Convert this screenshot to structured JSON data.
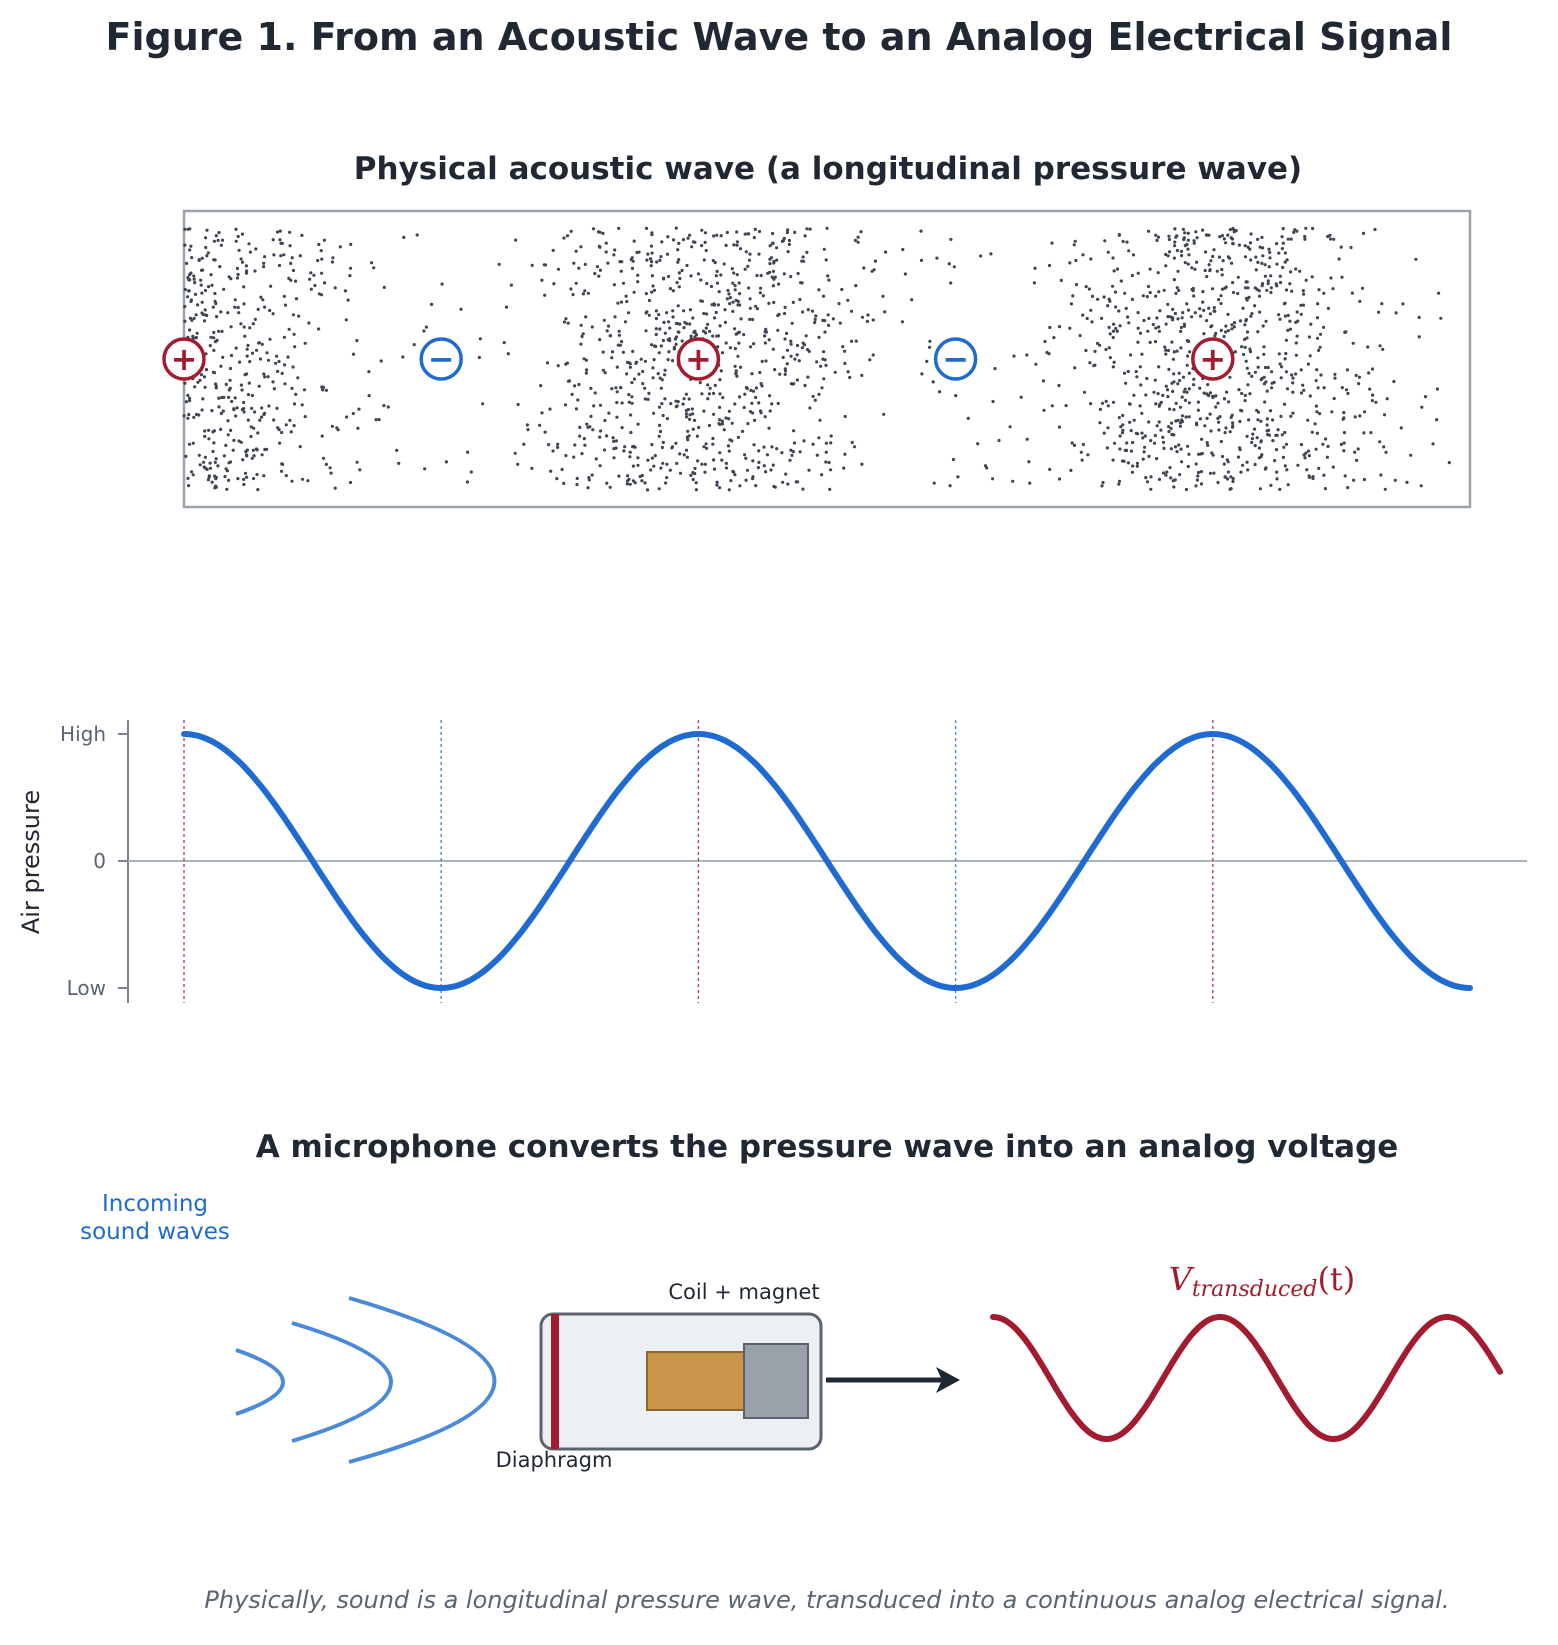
{
  "figure": {
    "title": "Figure 1.  From an Acoustic Wave to an Analog Electrical Signal",
    "caption": "Physically, sound is a longitudinal pressure wave, transduced into a continuous analog electrical signal."
  },
  "acoustic_panel": {
    "title": "Physical acoustic wave (a longitudinal pressure wave)",
    "markers": [
      {
        "symbol": "+",
        "kind": "compression"
      },
      {
        "symbol": "−",
        "kind": "rarefaction"
      },
      {
        "symbol": "+",
        "kind": "compression"
      },
      {
        "symbol": "−",
        "kind": "rarefaction"
      },
      {
        "symbol": "+",
        "kind": "compression"
      }
    ]
  },
  "pressure_panel": {
    "ylabel": "Air pressure",
    "ticks": [
      "High",
      "0",
      "Low"
    ]
  },
  "microphone_panel": {
    "title": "A microphone converts the pressure wave into an analog voltage",
    "incoming_label_line1": "Incoming",
    "incoming_label_line2": "sound waves",
    "coil_label": "Coil + magnet",
    "diaphragm_label": "Diaphragm",
    "voltage_label_main": "V",
    "voltage_label_sub": "transduced",
    "voltage_label_arg": "(t)"
  },
  "colors": {
    "compression": "#a31b2f",
    "rarefaction": "#1f6bd1",
    "pressure_curve": "#1f6bd1",
    "voltage_curve": "#a31b2f",
    "particles": "#3d4652",
    "sound_arcs": "#4a8ad8",
    "coil": "#c8954a",
    "magnet": "#9aa1ab",
    "diaphragm": "#a31b2f"
  },
  "chart_data": {
    "type": "line",
    "title": "",
    "xlabel": "",
    "ylabel": "Air pressure",
    "yticks": [
      "High",
      "0",
      "Low"
    ],
    "ylim": [
      -1,
      1
    ],
    "series": [
      {
        "values_description_free": true,
        "x_cycles": [
          0,
          0.25,
          0.5,
          0.75,
          1.0,
          1.25,
          1.5,
          1.75,
          2.0,
          2.25,
          2.5
        ],
        "y": [
          1,
          0,
          -1,
          0,
          1,
          0,
          -1,
          0,
          1,
          0,
          -1
        ]
      }
    ],
    "compression_at_cycles": [
      0,
      1,
      2
    ],
    "rarefaction_at_cycles": [
      0.5,
      1.5
    ],
    "grid": false
  }
}
